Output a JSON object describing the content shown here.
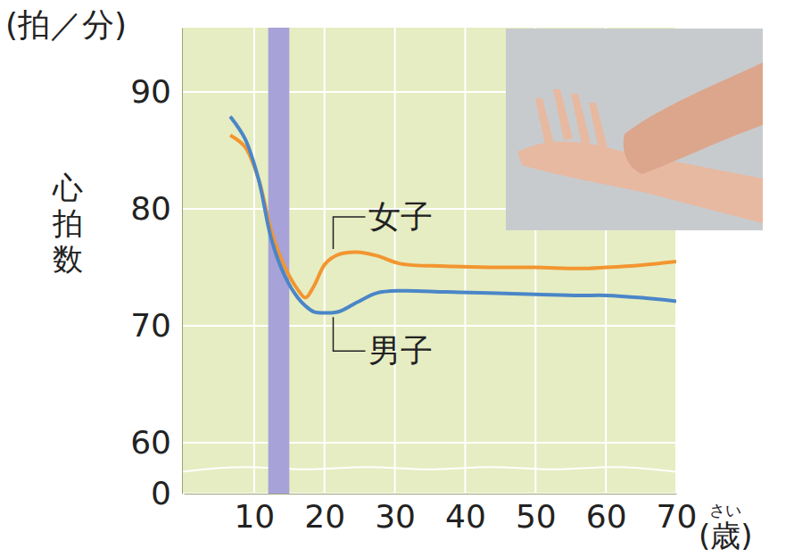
{
  "chart_data": {
    "type": "line",
    "y_label": "心拍数",
    "y_unit": "(拍／分)",
    "x_label": "(歳)",
    "x_label_ruby": "さい",
    "x": [
      6.6,
      8.7,
      10.6,
      12.5,
      14.4,
      16.2,
      17.3,
      18.5,
      20.1,
      22.0,
      24.6,
      27.4,
      30.9,
      37.2,
      43.5,
      49.9,
      56.2,
      60,
      65.1,
      70
    ],
    "series": [
      {
        "name": "女子",
        "color": "#f39530",
        "values": [
          86.3,
          85.3,
          82.6,
          78.0,
          75.0,
          73.1,
          72.4,
          73.4,
          75.3,
          76.1,
          76.3,
          76.0,
          75.3,
          75.1,
          75.0,
          75.0,
          74.9,
          75.0,
          75.2,
          75.5
        ]
      },
      {
        "name": "男子",
        "color": "#4a86c8",
        "values": [
          87.9,
          86.0,
          82.6,
          77.3,
          74.2,
          72.4,
          71.7,
          71.2,
          71.1,
          71.2,
          72.0,
          72.8,
          73.0,
          72.9,
          72.8,
          72.7,
          72.6,
          72.6,
          72.4,
          72.1
        ]
      }
    ],
    "band": [
      12,
      15
    ],
    "xlim": [
      0,
      70
    ],
    "xticks": [
      10,
      20,
      30,
      40,
      50,
      60,
      70
    ],
    "ylim": [
      0,
      95.5
    ],
    "yticks": [
      0,
      60,
      70,
      80,
      90
    ],
    "grid": true
  }
}
